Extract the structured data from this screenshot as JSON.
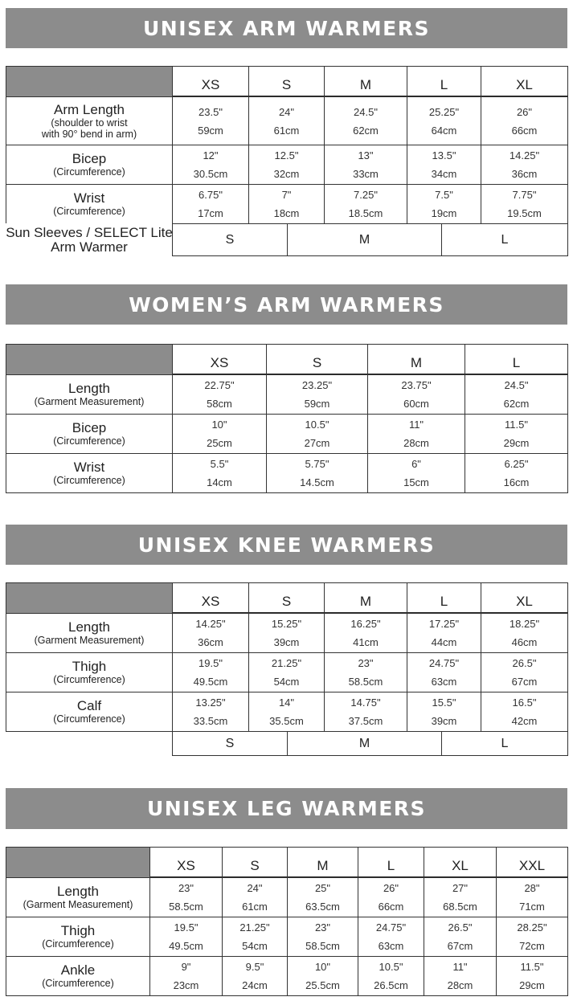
{
  "sections": [
    {
      "title": "UNISEX ARM WARMERS",
      "sizes": [
        "XS",
        "S",
        "M",
        "L",
        "XL"
      ],
      "rows": [
        {
          "label": "Arm Length",
          "sub": [
            "(shoulder to wrist",
            "with 90° bend in arm)"
          ],
          "values": [
            [
              "23.5\"",
              "59cm"
            ],
            [
              "24\"",
              "61cm"
            ],
            [
              "24.5\"",
              "62cm"
            ],
            [
              "25.25\"",
              "64cm"
            ],
            [
              "26\"",
              "66cm"
            ]
          ]
        },
        {
          "label": "Bicep",
          "sub": [
            "(Circumference)"
          ],
          "values": [
            [
              "12\"",
              "30.5cm"
            ],
            [
              "12.5\"",
              "32cm"
            ],
            [
              "13\"",
              "33cm"
            ],
            [
              "13.5\"",
              "34cm"
            ],
            [
              "14.25\"",
              "36cm"
            ]
          ]
        },
        {
          "label": "Wrist",
          "sub": [
            "(Circumference)"
          ],
          "values": [
            [
              "6.75\"",
              "17cm"
            ],
            [
              "7\"",
              "18cm"
            ],
            [
              "7.25\"",
              "18.5cm"
            ],
            [
              "7.5\"",
              "19cm"
            ],
            [
              "7.75\"",
              "19.5cm"
            ]
          ]
        }
      ],
      "extra_row": {
        "label": [
          "Sun Sleeves / SELECT Lite",
          "Arm Warmer"
        ],
        "sizes": [
          "S",
          "M",
          "L"
        ]
      }
    },
    {
      "title": "WOMEN’S ARM WARMERS",
      "sizes": [
        "XS",
        "S",
        "M",
        "L"
      ],
      "rows": [
        {
          "label": "Length",
          "sub": [
            "(Garment Measurement)"
          ],
          "values": [
            [
              "22.75\"",
              "58cm"
            ],
            [
              "23.25\"",
              "59cm"
            ],
            [
              "23.75\"",
              "60cm"
            ],
            [
              "24.5\"",
              "62cm"
            ]
          ]
        },
        {
          "label": "Bicep",
          "sub": [
            "(Circumference)"
          ],
          "values": [
            [
              "10\"",
              "25cm"
            ],
            [
              "10.5\"",
              "27cm"
            ],
            [
              "11\"",
              "28cm"
            ],
            [
              "11.5\"",
              "29cm"
            ]
          ]
        },
        {
          "label": "Wrist",
          "sub": [
            "(Circumference)"
          ],
          "values": [
            [
              "5.5\"",
              "14cm"
            ],
            [
              "5.75\"",
              "14.5cm"
            ],
            [
              "6\"",
              "15cm"
            ],
            [
              "6.25\"",
              "16cm"
            ]
          ]
        }
      ]
    },
    {
      "title": "UNISEX KNEE WARMERS",
      "sizes": [
        "XS",
        "S",
        "M",
        "L",
        "XL"
      ],
      "rows": [
        {
          "label": "Length",
          "sub": [
            "(Garment Measurement)"
          ],
          "values": [
            [
              "14.25\"",
              "36cm"
            ],
            [
              "15.25\"",
              "39cm"
            ],
            [
              "16.25\"",
              "41cm"
            ],
            [
              "17.25\"",
              "44cm"
            ],
            [
              "18.25\"",
              "46cm"
            ]
          ]
        },
        {
          "label": "Thigh",
          "sub": [
            "(Circumference)"
          ],
          "values": [
            [
              "19.5\"",
              "49.5cm"
            ],
            [
              "21.25\"",
              "54cm"
            ],
            [
              "23\"",
              "58.5cm"
            ],
            [
              "24.75\"",
              "63cm"
            ],
            [
              "26.5\"",
              "67cm"
            ]
          ]
        },
        {
          "label": "Calf",
          "sub": [
            "(Circumference)"
          ],
          "values": [
            [
              "13.25\"",
              "33.5cm"
            ],
            [
              "14\"",
              "35.5cm"
            ],
            [
              "14.75\"",
              "37.5cm"
            ],
            [
              "15.5\"",
              "39cm"
            ],
            [
              "16.5\"",
              "42cm"
            ]
          ]
        }
      ],
      "extra_row": {
        "label": [],
        "sizes": [
          "S",
          "M",
          "L"
        ]
      }
    },
    {
      "title": "UNISEX LEG WARMERS",
      "sizes": [
        "XS",
        "S",
        "M",
        "L",
        "XL",
        "XXL"
      ],
      "rows": [
        {
          "label": "Length",
          "sub": [
            "(Garment Measurement)"
          ],
          "values": [
            [
              "23\"",
              "58.5cm"
            ],
            [
              "24\"",
              "61cm"
            ],
            [
              "25\"",
              "63.5cm"
            ],
            [
              "26\"",
              "66cm"
            ],
            [
              "27\"",
              "68.5cm"
            ],
            [
              "28\"",
              "71cm"
            ]
          ]
        },
        {
          "label": "Thigh",
          "sub": [
            "(Circumference)"
          ],
          "values": [
            [
              "19.5\"",
              "49.5cm"
            ],
            [
              "21.25\"",
              "54cm"
            ],
            [
              "23\"",
              "58.5cm"
            ],
            [
              "24.75\"",
              "63cm"
            ],
            [
              "26.5\"",
              "67cm"
            ],
            [
              "28.25\"",
              "72cm"
            ]
          ]
        },
        {
          "label": "Ankle",
          "sub": [
            "(Circumference)"
          ],
          "values": [
            [
              "9\"",
              "23cm"
            ],
            [
              "9.5\"",
              "24cm"
            ],
            [
              "10\"",
              "25.5cm"
            ],
            [
              "10.5\"",
              "26.5cm"
            ],
            [
              "11\"",
              "28cm"
            ],
            [
              "11.5\"",
              "29cm"
            ]
          ]
        }
      ]
    }
  ]
}
